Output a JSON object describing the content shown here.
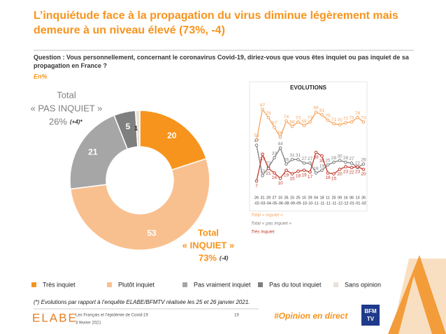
{
  "header": {
    "title": "L’inquiétude face à la propagation du virus diminue légèrement mais demeure à un niveau élevé (73%, -4)",
    "question": "Question : Vous personnellement, concernant le coronavirus Covid-19, diriez-vous que vous êtes inquiet ou pas inquiet de sa propagation en France ?",
    "unit": "En%"
  },
  "chart_data": [
    {
      "type": "pie",
      "categories": [
        "Très inquiet",
        "Plutôt inquiet",
        "Pas vraiment inquiet",
        "Pas du tout inquiet",
        "Sans opinion"
      ],
      "values": [
        20,
        53,
        21,
        5,
        1
      ],
      "colors": [
        "#f7941d",
        "#f9c08f",
        "#a6a6a6",
        "#7f7f7f",
        "#e9e1d9"
      ],
      "legend": "bottom",
      "annotations": {
        "pas_inquiet": {
          "line1": "Total",
          "line2": "« PAS INQUIET »",
          "value": "26%",
          "change": "(+4)*"
        },
        "inquiet": {
          "line1": "Total",
          "line2": "« INQUIET »",
          "value": "73%",
          "change": "(-4)"
        }
      }
    },
    {
      "type": "line",
      "title": "EVOLUTIONS",
      "categories": [
        [
          "26",
          "-02"
        ],
        [
          "31",
          "-03"
        ],
        [
          "29",
          "-04"
        ],
        [
          "27",
          "-05"
        ],
        [
          "15",
          "-06"
        ],
        [
          "26",
          "-08"
        ],
        [
          "15",
          "-09"
        ],
        [
          "25",
          "-09"
        ],
        [
          "15",
          "-10"
        ],
        [
          "29",
          "-10"
        ],
        [
          "04",
          "-11"
        ],
        [
          "18",
          "-11"
        ],
        [
          "11",
          "-11"
        ],
        [
          "25",
          "-11"
        ],
        [
          "09",
          "-12"
        ],
        [
          "16",
          "-12"
        ],
        [
          "06",
          "-01"
        ],
        [
          "13",
          "-01"
        ],
        [
          "26",
          "-02"
        ]
      ],
      "ylim": [
        0,
        100
      ],
      "series": [
        {
          "name": "Total « inquiet »",
          "color": "#f7a35c",
          "values": [
            53,
            87,
            78,
            67,
            56,
            74,
            68,
            73,
            69,
            73,
            84,
            81,
            75,
            71,
            70,
            72,
            73,
            78,
            73
          ]
        },
        {
          "name": "Total « pas inquiet »",
          "color": "#7f7f7f",
          "values": [
            47,
            13,
            22,
            33,
            44,
            26,
            31,
            31,
            27,
            27,
            16,
            19,
            25,
            28,
            30,
            28,
            27,
            22,
            26
          ]
        },
        {
          "name": "Très inquiet",
          "color": "#c0392b",
          "values": [
            7,
            37,
            21,
            16,
            10,
            19,
            15,
            18,
            19,
            17,
            39,
            35,
            16,
            15,
            20,
            23,
            22,
            23,
            20
          ]
        }
      ]
    }
  ],
  "footer": {
    "note": "(*) Evolutions par rapport à l’enquête ELABE/BFMTV réalisée les 25 et 26 janvier 2021.",
    "study": "Les Français et l’épidémie de Covid-19",
    "date": "3 février 2021",
    "page": "19",
    "hashtag": "#Opinion en direct",
    "brand": "ELABE",
    "partner_top": "BFM",
    "partner_bottom": "TV"
  }
}
